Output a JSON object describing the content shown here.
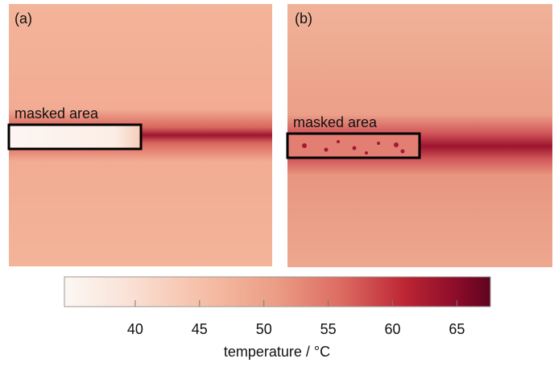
{
  "panels": [
    {
      "label": "(a)",
      "annotation": "masked area"
    },
    {
      "label": "(b)",
      "annotation": "masked area"
    }
  ],
  "colorbar": {
    "label": "temperature / °C",
    "lim": [
      34.5,
      67.6
    ],
    "ticks": [
      40,
      45,
      50,
      55,
      60,
      65
    ]
  }
}
